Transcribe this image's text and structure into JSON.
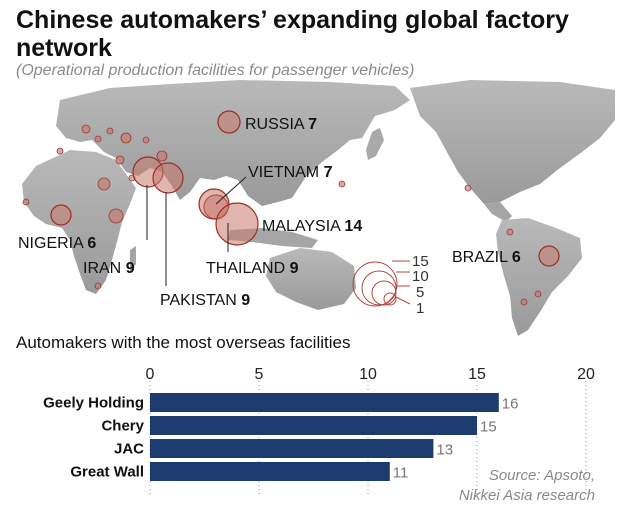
{
  "header": {
    "title": "Chinese automakers’ expanding global factory network",
    "subtitle": "(Operational production facilities for passenger vehicles)"
  },
  "map": {
    "bubble_color": "#c87a6e",
    "labels": [
      {
        "name": "RUSSIA",
        "count": 7
      },
      {
        "name": "VIETNAM",
        "count": 7
      },
      {
        "name": "MALAYSIA",
        "count": 14
      },
      {
        "name": "NIGERIA",
        "count": 6
      },
      {
        "name": "IRAN",
        "count": 9
      },
      {
        "name": "THAILAND",
        "count": 9
      },
      {
        "name": "PAKISTAN",
        "count": 9
      },
      {
        "name": "BRAZIL",
        "count": 6
      }
    ],
    "size_legend": [
      15,
      10,
      5,
      1
    ]
  },
  "chart_data": {
    "type": "bar",
    "orientation": "horizontal",
    "title": "Automakers with the most overseas facilities",
    "categories": [
      "Geely Holding",
      "Chery",
      "JAC",
      "Great Wall"
    ],
    "values": [
      16,
      15,
      13,
      11
    ],
    "xlim": [
      0,
      20
    ],
    "xticks": [
      0,
      5,
      10,
      15,
      20
    ],
    "bar_color": "#1c3b6e",
    "grid": "dotted vertical"
  },
  "footer": {
    "source_line1": "Source: Apsoto,",
    "source_line2": "Nikkei Asia research"
  }
}
